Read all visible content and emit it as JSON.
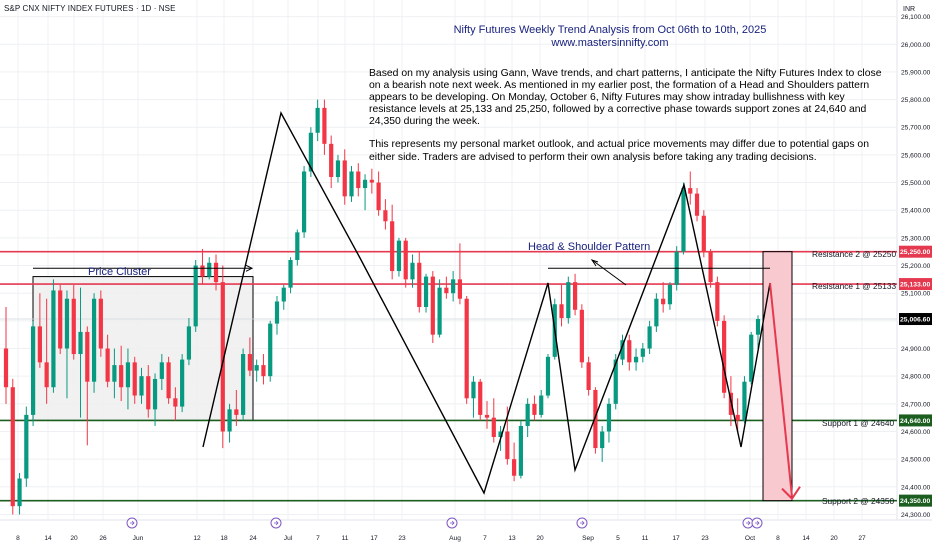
{
  "header": {
    "symbol": "S&P CNX NIFTY INDEX FUTURES · 1D · NSE",
    "currency": "INR"
  },
  "title": {
    "line1": "Nifty Futures Weekly Trend Analysis from Oct 06th to 10th, 2025",
    "line2": "www.mastersinnifty.com"
  },
  "note": {
    "para1": "Based on my analysis using Gann, Wave trends, and chart patterns, I anticipate the Nifty Futures Index to close on a bearish note next week. As mentioned in my earlier post, the formation of a Head and Shoulders pattern appears to be developing. On Monday, October 6, Nifty Futures may show intraday bullishness with key resistance levels at 25,133 and 25,250, followed by a corrective phase towards support zones at 24,640 and 24,350 during the week.",
    "para2": "This represents my personal market outlook, and actual price movements may differ due to potential gaps on either side. Traders are advised to perform their own analysis before taking any trading decisions."
  },
  "annotations": {
    "price_cluster": "Price Cluster",
    "head_shoulder": "Head & Shoulder Pattern"
  },
  "colors": {
    "up": "#089981",
    "down": "#f23645",
    "resistance": "#e53950",
    "support": "#1b5e20",
    "grid": "#eef0f3",
    "annotation": "#1a237e",
    "projection": "#f8c9cf"
  },
  "chart_data": {
    "type": "candlestick",
    "y_ticks": [
      24300,
      24400,
      24500,
      24600,
      24700,
      24800,
      24900,
      25000,
      25100,
      25200,
      25300,
      25400,
      25500,
      25600,
      25700,
      25800,
      25900,
      26000,
      26100
    ],
    "y_tick_labels": [
      "24,300.00",
      "24,400.00",
      "24,500.00",
      "24,600.00",
      "24,700.00",
      "24,800.00",
      "24,900.00",
      "25,000.00",
      "25,100.00",
      "25,200.00",
      "25,300.00",
      "25,400.00",
      "25,500.00",
      "25,600.00",
      "25,700.00",
      "25,800.00",
      "25,900.00",
      "26,000.00",
      "26,100.00"
    ],
    "ylim": [
      24280,
      26160
    ],
    "x_ticks": [
      "8",
      "14",
      "20",
      "26",
      "Jun",
      "12",
      "18",
      "24",
      "Jul",
      "7",
      "11",
      "17",
      "23",
      "Aug",
      "7",
      "13",
      "20",
      "Sep",
      "5",
      "11",
      "17",
      "23",
      "Oct",
      "8",
      "14",
      "20",
      "27"
    ],
    "levels": [
      {
        "name": "Resistance 2",
        "label": "Resistance 2 @ 25250",
        "value": 25250,
        "price_tag": "25,250.00",
        "kind": "resistance"
      },
      {
        "name": "Resistance 1",
        "label": "Resistance 1 @ 25133",
        "value": 25133,
        "price_tag": "25,133.00",
        "kind": "resistance"
      },
      {
        "name": "Support 1",
        "label": "Support 1 @ 24640",
        "value": 24640,
        "price_tag": "24,640.00",
        "kind": "support"
      },
      {
        "name": "Support 2",
        "label": "Support 2 @ 24350",
        "value": 24350,
        "price_tag": "24,350.00",
        "kind": "support"
      }
    ],
    "last_price": {
      "value": 25006.6,
      "label": "25,006.60"
    },
    "candles": [
      [
        24900,
        25050,
        24700,
        24760
      ],
      [
        24760,
        24790,
        24300,
        24330
      ],
      [
        24330,
        24450,
        24300,
        24430
      ],
      [
        24430,
        24690,
        24400,
        24660
      ],
      [
        24660,
        25000,
        24620,
        24980
      ],
      [
        24980,
        25100,
        24830,
        24850
      ],
      [
        24850,
        25080,
        24700,
        24760
      ],
      [
        24760,
        25150,
        24740,
        25110
      ],
      [
        25110,
        25130,
        24880,
        24900
      ],
      [
        24900,
        25110,
        24720,
        25080
      ],
      [
        25080,
        25130,
        24860,
        24880
      ],
      [
        24880,
        25120,
        24650,
        24960
      ],
      [
        24960,
        24980,
        24550,
        24780
      ],
      [
        24780,
        25100,
        24740,
        25080
      ],
      [
        25080,
        25110,
        24870,
        24900
      ],
      [
        24900,
        24950,
        24760,
        24780
      ],
      [
        24780,
        24900,
        24720,
        24840
      ],
      [
        24840,
        24910,
        24710,
        24760
      ],
      [
        24760,
        24900,
        24680,
        24850
      ],
      [
        24850,
        24870,
        24700,
        24730
      ],
      [
        24730,
        24830,
        24700,
        24800
      ],
      [
        24800,
        24840,
        24650,
        24680
      ],
      [
        24680,
        24810,
        24620,
        24790
      ],
      [
        24790,
        24880,
        24750,
        24850
      ],
      [
        24850,
        24870,
        24700,
        24720
      ],
      [
        24720,
        24760,
        24640,
        24690
      ],
      [
        24690,
        24880,
        24670,
        24860
      ],
      [
        24860,
        25010,
        24840,
        24980
      ],
      [
        24980,
        25220,
        24960,
        25200
      ],
      [
        25200,
        25260,
        25130,
        25160
      ],
      [
        25160,
        25230,
        25150,
        25210
      ],
      [
        25210,
        25240,
        25110,
        25140
      ],
      [
        25140,
        25200,
        24540,
        24600
      ],
      [
        24600,
        24700,
        24560,
        24680
      ],
      [
        24680,
        24750,
        24620,
        24660
      ],
      [
        24660,
        24900,
        24640,
        24880
      ],
      [
        24880,
        24940,
        24800,
        24820
      ],
      [
        24820,
        24860,
        24780,
        24840
      ],
      [
        24840,
        24880,
        24770,
        24800
      ],
      [
        24800,
        25000,
        24780,
        24990
      ],
      [
        24990,
        25090,
        24950,
        25070
      ],
      [
        25070,
        25130,
        25040,
        25120
      ],
      [
        25120,
        25230,
        25100,
        25220
      ],
      [
        25220,
        25330,
        25200,
        25320
      ],
      [
        25320,
        25560,
        25300,
        25540
      ],
      [
        25540,
        25700,
        25520,
        25680
      ],
      [
        25680,
        25800,
        25650,
        25770
      ],
      [
        25770,
        25800,
        25600,
        25640
      ],
      [
        25640,
        25670,
        25480,
        25520
      ],
      [
        25520,
        25600,
        25500,
        25580
      ],
      [
        25580,
        25620,
        25420,
        25450
      ],
      [
        25450,
        25560,
        25430,
        25540
      ],
      [
        25540,
        25570,
        25450,
        25480
      ],
      [
        25480,
        25530,
        25400,
        25510
      ],
      [
        25510,
        25550,
        25460,
        25500
      ],
      [
        25500,
        25540,
        25380,
        25400
      ],
      [
        25400,
        25440,
        25330,
        25360
      ],
      [
        25360,
        25420,
        25150,
        25180
      ],
      [
        25180,
        25300,
        25160,
        25290
      ],
      [
        25290,
        25300,
        25120,
        25150
      ],
      [
        25150,
        25240,
        25120,
        25210
      ],
      [
        25210,
        25250,
        25030,
        25050
      ],
      [
        25050,
        25170,
        25030,
        25160
      ],
      [
        25160,
        25180,
        24920,
        24950
      ],
      [
        24950,
        25150,
        24940,
        25120
      ],
      [
        25120,
        25160,
        25080,
        25100
      ],
      [
        25100,
        25180,
        25070,
        25150
      ],
      [
        25150,
        25280,
        25060,
        25080
      ],
      [
        25080,
        25090,
        24700,
        24720
      ],
      [
        24720,
        24800,
        24650,
        24780
      ],
      [
        24780,
        24790,
        24640,
        24660
      ],
      [
        24660,
        24710,
        24610,
        24650
      ],
      [
        24650,
        24720,
        24560,
        24580
      ],
      [
        24580,
        24620,
        24530,
        24600
      ],
      [
        24600,
        24690,
        24480,
        24500
      ],
      [
        24500,
        24560,
        24420,
        24440
      ],
      [
        24440,
        24640,
        24430,
        24620
      ],
      [
        24620,
        24720,
        24580,
        24700
      ],
      [
        24700,
        24730,
        24640,
        24660
      ],
      [
        24660,
        24750,
        24650,
        24730
      ],
      [
        24730,
        24880,
        24720,
        24870
      ],
      [
        24870,
        25080,
        24860,
        25060
      ],
      [
        25060,
        25130,
        24980,
        25010
      ],
      [
        25010,
        25160,
        24990,
        25140
      ],
      [
        25140,
        25170,
        25020,
        25040
      ],
      [
        25040,
        25060,
        24830,
        24850
      ],
      [
        24850,
        24870,
        24730,
        24750
      ],
      [
        24750,
        24760,
        24520,
        24540
      ],
      [
        24540,
        24620,
        24490,
        24600
      ],
      [
        24600,
        24720,
        24560,
        24700
      ],
      [
        24700,
        24880,
        24680,
        24860
      ],
      [
        24860,
        24950,
        24840,
        24930
      ],
      [
        24930,
        24950,
        24820,
        24850
      ],
      [
        24850,
        24900,
        24820,
        24870
      ],
      [
        24870,
        24920,
        24850,
        24900
      ],
      [
        24900,
        25000,
        24880,
        24980
      ],
      [
        24980,
        25100,
        24960,
        25080
      ],
      [
        25080,
        25140,
        25030,
        25060
      ],
      [
        25060,
        25140,
        25040,
        25130
      ],
      [
        25130,
        25270,
        25110,
        25250
      ],
      [
        25250,
        25500,
        25240,
        25480
      ],
      [
        25480,
        25540,
        25420,
        25460
      ],
      [
        25460,
        25480,
        25360,
        25380
      ],
      [
        25380,
        25400,
        25230,
        25250
      ],
      [
        25250,
        25260,
        25120,
        25140
      ],
      [
        25140,
        25160,
        24980,
        25000
      ],
      [
        25000,
        25020,
        24720,
        24740
      ],
      [
        24740,
        24800,
        24620,
        24660
      ],
      [
        24660,
        24720,
        24600,
        24640
      ],
      [
        24640,
        24800,
        24630,
        24780
      ],
      [
        24780,
        24960,
        24770,
        24950
      ],
      [
        24950,
        25020,
        24900,
        25006.6
      ]
    ]
  }
}
